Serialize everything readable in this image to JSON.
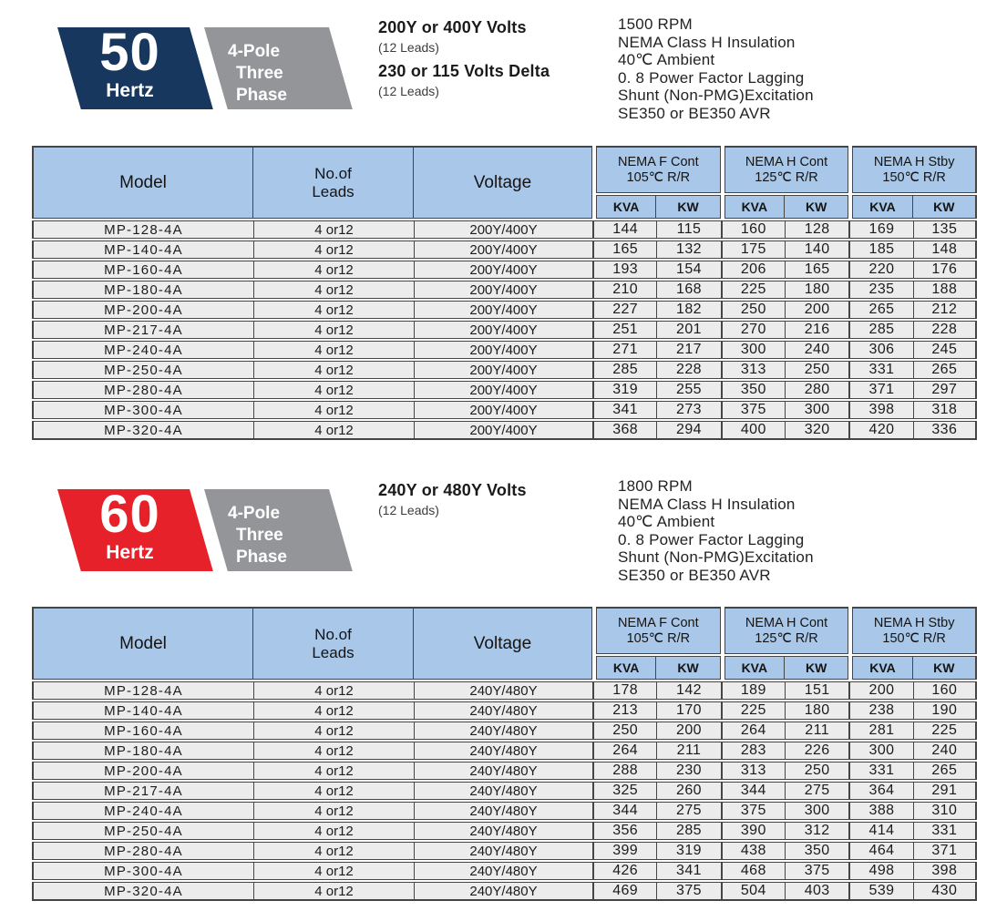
{
  "colors": {
    "navy": "#17375e",
    "red": "#e62129",
    "badge_gray": "#939598",
    "header_blue": "#a9c7e8",
    "row_bg": "#ececec",
    "line": "#454545"
  },
  "table_headers": {
    "model": "Model",
    "leads_line1": "No.of",
    "leads_line2": "Leads",
    "voltage": "Voltage",
    "groups": [
      {
        "title": "NEMA F Cont",
        "sub": "105℃ R/R"
      },
      {
        "title": "NEMA H Cont",
        "sub": "125℃ R/R"
      },
      {
        "title": "NEMA H Stby",
        "sub": "150℃ R/R"
      }
    ],
    "units": [
      "KVA",
      "KW",
      "KVA",
      "KW",
      "KVA",
      "KW"
    ]
  },
  "sections": [
    {
      "badge": {
        "number": "50",
        "unit": "Hertz",
        "pole": "4-Pole",
        "phase": "Three Phase"
      },
      "voltage_lines": [
        {
          "main": "200Y or 400Y Volts",
          "sub": "(12 Leads)"
        },
        {
          "main": "230 or 115 Volts Delta",
          "sub": "(12 Leads)"
        }
      ],
      "specs": [
        "1500 RPM",
        "NEMA Class H Insulation",
        "40℃ Ambient",
        "0. 8 Power Factor Lagging",
        "Shunt (Non-PMG)Excitation",
        "SE350 or BE350 AVR"
      ],
      "rows": [
        [
          "MP-128-4A",
          "4 or12",
          "200Y/400Y",
          "144",
          "115",
          "160",
          "128",
          "169",
          "135"
        ],
        [
          "MP-140-4A",
          "4 or12",
          "200Y/400Y",
          "165",
          "132",
          "175",
          "140",
          "185",
          "148"
        ],
        [
          "MP-160-4A",
          "4 or12",
          "200Y/400Y",
          "193",
          "154",
          "206",
          "165",
          "220",
          "176"
        ],
        [
          "MP-180-4A",
          "4 or12",
          "200Y/400Y",
          "210",
          "168",
          "225",
          "180",
          "235",
          "188"
        ],
        [
          "MP-200-4A",
          "4 or12",
          "200Y/400Y",
          "227",
          "182",
          "250",
          "200",
          "265",
          "212"
        ],
        [
          "MP-217-4A",
          "4 or12",
          "200Y/400Y",
          "251",
          "201",
          "270",
          "216",
          "285",
          "228"
        ],
        [
          "MP-240-4A",
          "4 or12",
          "200Y/400Y",
          "271",
          "217",
          "300",
          "240",
          "306",
          "245"
        ],
        [
          "MP-250-4A",
          "4 or12",
          "200Y/400Y",
          "285",
          "228",
          "313",
          "250",
          "331",
          "265"
        ],
        [
          "MP-280-4A",
          "4 or12",
          "200Y/400Y",
          "319",
          "255",
          "350",
          "280",
          "371",
          "297"
        ],
        [
          "MP-300-4A",
          "4 or12",
          "200Y/400Y",
          "341",
          "273",
          "375",
          "300",
          "398",
          "318"
        ],
        [
          "MP-320-4A",
          "4 or12",
          "200Y/400Y",
          "368",
          "294",
          "400",
          "320",
          "420",
          "336"
        ]
      ]
    },
    {
      "badge": {
        "number": "60",
        "unit": "Hertz",
        "pole": "4-Pole",
        "phase": "Three Phase"
      },
      "voltage_lines": [
        {
          "main": "240Y or 480Y Volts",
          "sub": "(12 Leads)"
        }
      ],
      "specs": [
        "1800 RPM",
        "NEMA Class H Insulation",
        "40℃ Ambient",
        "0. 8 Power Factor Lagging",
        "Shunt (Non-PMG)Excitation",
        "SE350 or BE350 AVR"
      ],
      "rows": [
        [
          "MP-128-4A",
          "4 or12",
          "240Y/480Y",
          "178",
          "142",
          "189",
          "151",
          "200",
          "160"
        ],
        [
          "MP-140-4A",
          "4 or12",
          "240Y/480Y",
          "213",
          "170",
          "225",
          "180",
          "238",
          "190"
        ],
        [
          "MP-160-4A",
          "4 or12",
          "240Y/480Y",
          "250",
          "200",
          "264",
          "211",
          "281",
          "225"
        ],
        [
          "MP-180-4A",
          "4 or12",
          "240Y/480Y",
          "264",
          "211",
          "283",
          "226",
          "300",
          "240"
        ],
        [
          "MP-200-4A",
          "4 or12",
          "240Y/480Y",
          "288",
          "230",
          "313",
          "250",
          "331",
          "265"
        ],
        [
          "MP-217-4A",
          "4 or12",
          "240Y/480Y",
          "325",
          "260",
          "344",
          "275",
          "364",
          "291"
        ],
        [
          "MP-240-4A",
          "4 or12",
          "240Y/480Y",
          "344",
          "275",
          "375",
          "300",
          "388",
          "310"
        ],
        [
          "MP-250-4A",
          "4 or12",
          "240Y/480Y",
          "356",
          "285",
          "390",
          "312",
          "414",
          "331"
        ],
        [
          "MP-280-4A",
          "4 or12",
          "240Y/480Y",
          "399",
          "319",
          "438",
          "350",
          "464",
          "371"
        ],
        [
          "MP-300-4A",
          "4 or12",
          "240Y/480Y",
          "426",
          "341",
          "468",
          "375",
          "498",
          "398"
        ],
        [
          "MP-320-4A",
          "4 or12",
          "240Y/480Y",
          "469",
          "375",
          "504",
          "403",
          "539",
          "430"
        ]
      ]
    }
  ]
}
